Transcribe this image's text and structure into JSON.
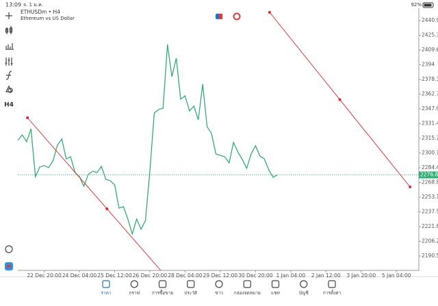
{
  "status_bar": {
    "time": "13:09",
    "date": "จ. 1 ม.ค.",
    "battery": "92%"
  },
  "toolbar": {
    "timeframe": "H4"
  },
  "chart_data": {
    "type": "line",
    "title": "ETHUSDm • H4",
    "subtitle": "Ethereum vs US Dollar",
    "x": [
      0,
      1,
      2,
      3,
      4,
      5,
      6,
      7,
      8,
      9,
      10,
      11,
      12,
      13,
      14,
      15,
      16,
      17,
      18,
      19,
      20,
      21,
      22,
      23,
      24,
      25,
      26,
      27,
      28,
      29,
      30,
      31,
      32,
      33,
      34,
      35,
      36,
      37,
      38,
      39,
      40,
      41,
      42,
      43,
      44,
      45,
      46,
      47,
      48,
      49,
      50,
      51,
      52,
      53,
      54,
      55,
      56,
      57,
      58,
      59
    ],
    "series": [
      {
        "name": "ETHUSDm",
        "color": "#2fae74",
        "axis": "y2",
        "values": [
          2313.6,
          2319.4,
          2312.1,
          2325.9,
          2275.0,
          2285.2,
          2286.7,
          2284.5,
          2291.8,
          2308.5,
          2315.0,
          2293.9,
          2296.1,
          2279.4,
          2275.0,
          2264.8,
          2277.2,
          2280.8,
          2279.4,
          2285.9,
          2272.1,
          2270.6,
          2266.3,
          2241.5,
          2243.0,
          2229.9,
          2213.9,
          2229.9,
          2219.0,
          2228.4,
          2280.8,
          2342.7,
          2346.3,
          2347.8,
          2415.5,
          2381.3,
          2400.9,
          2357.3,
          2360.9,
          2344.9,
          2350.0,
          2335.4,
          2373.3,
          2328.1,
          2320.9,
          2299.1,
          2297.6,
          2296.1,
          2289.6,
          2311.4,
          2301.2,
          2293.2,
          2283.8,
          2299.1,
          2307.8,
          2296.9,
          2293.9,
          2282.3,
          2274.3,
          2276.84
        ]
      }
    ],
    "current_price": 2276.84,
    "current_price_color": "#2fae74",
    "trendline_color": "#e0262b",
    "trendlines": [
      {
        "x": [
          2.2,
          38.3
        ],
        "y": [
          2337.6,
          2144.0
        ]
      },
      {
        "x": [
          57.2,
          89.1
        ],
        "y": [
          2449.7,
          2264.1
        ]
      }
    ],
    "xlim": [
      0,
      91.1
    ],
    "xticks": [
      {
        "value": 6,
        "label": "22 Dec 20:00"
      },
      {
        "value": 14,
        "label": "24 Dec 04:00"
      },
      {
        "value": 22,
        "label": "25 Dec 12:00"
      },
      {
        "value": 30,
        "label": "26 Dec 20:00"
      },
      {
        "value": 38,
        "label": "28 Dec 04:00"
      },
      {
        "value": 46,
        "label": "29 Dec 12:00"
      },
      {
        "value": 54,
        "label": "30 Dec 20:00"
      },
      {
        "value": 62,
        "label": "1 Jan 04:00"
      },
      {
        "value": 70,
        "label": "2 Jan 12:00"
      },
      {
        "value": 78,
        "label": "3 Jan 20:00"
      },
      {
        "value": 86,
        "label": "5 Jan 04:00"
      }
    ],
    "y2lim": [
      2175.3,
      2454.05
    ],
    "y2ticks": [
      2440.95,
      2425.3,
      2409.65,
      2394,
      2378.35,
      2362.7,
      2347.05,
      2331.4,
      2315.75,
      2300.1,
      2284.45,
      2268.8,
      2253.15,
      2237.5,
      2221.85,
      2206.2,
      2190.55
    ]
  },
  "tab_bar": {
    "items": [
      "ราคา",
      "กราฟ",
      "การซื้อขาย",
      "ประวัติ",
      "ข่าว",
      "กล่องจดหมาย",
      "แชท",
      "บัญชี",
      "การตั้งค่า"
    ]
  }
}
